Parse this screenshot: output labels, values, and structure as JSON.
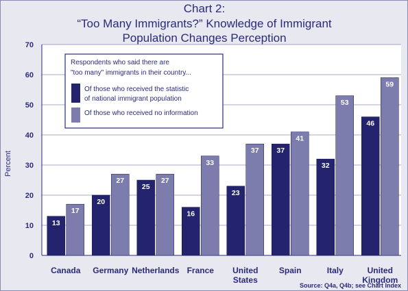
{
  "chart_data": {
    "type": "bar",
    "title_lines": [
      "Chart 2:",
      "“Too Many Immigrants?” Knowledge of Immigrant",
      "Population Changes Perception"
    ],
    "ylabel": "Percent",
    "ylim": [
      0,
      70
    ],
    "yticks": [
      0,
      10,
      20,
      30,
      40,
      50,
      60,
      70
    ],
    "grid": true,
    "categories": [
      [
        "Canada"
      ],
      [
        "Germany"
      ],
      [
        "Netherlands"
      ],
      [
        "France"
      ],
      [
        "United",
        "States"
      ],
      [
        "Spain"
      ],
      [
        "Italy"
      ],
      [
        "United",
        "Kingdom"
      ]
    ],
    "series": [
      {
        "name_lines": [
          "Of those who received the statistic",
          "of national immigrant population"
        ],
        "color": "#23236e",
        "values": [
          13,
          20,
          25,
          16,
          23,
          37,
          32,
          46
        ]
      },
      {
        "name_lines": [
          "Of those who received no information"
        ],
        "color": "#7d7dad",
        "values": [
          17,
          27,
          27,
          33,
          37,
          41,
          53,
          59
        ]
      }
    ],
    "legend_title_lines": [
      "Respondents who said there are",
      "\"too many\" immigrants in their country..."
    ],
    "legend_position": "top-left",
    "source": "Source: Q4a, Q4b; see Chart Index"
  }
}
